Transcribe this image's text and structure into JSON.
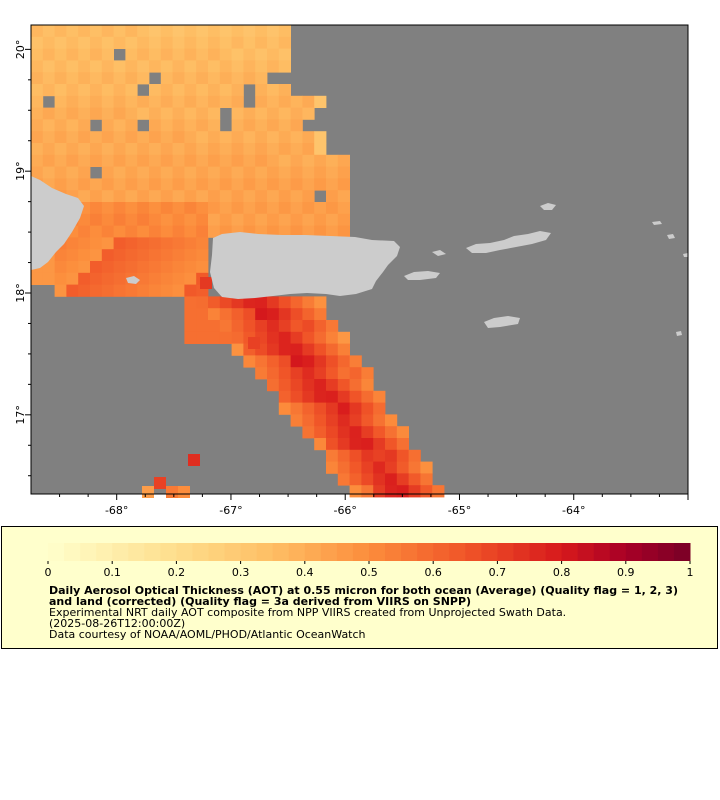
{
  "map": {
    "lon_range": [
      -68.75,
      -63.0
    ],
    "lat_range": [
      16.35,
      20.2
    ],
    "lon_ticks": [
      -68,
      -67,
      -66,
      -65,
      -64
    ],
    "lon_tick_labels": [
      "-68°",
      "-67°",
      "-66°",
      "-65°",
      "-64°"
    ],
    "lat_ticks": [
      17,
      18,
      19,
      20
    ],
    "lat_tick_labels": [
      "17°",
      "18°",
      "19°",
      "20°"
    ],
    "colors": {
      "no_data": "#808080",
      "land": "#cccccc",
      "frame": "#000000"
    }
  },
  "legend": {
    "ticks": [
      0,
      0.1,
      0.2,
      0.3,
      0.4,
      0.5,
      0.6,
      0.7,
      0.8,
      0.9,
      1
    ],
    "tick_labels": [
      "0",
      "0.1",
      "0.2",
      "0.3",
      "0.4",
      "0.5",
      "0.6",
      "0.7",
      "0.8",
      "0.9",
      "1"
    ],
    "title": "Daily Aerosol Optical Thickness (AOT) at 0.55 micron for both ocean (Average) (Quality flag = 1, 2, 3) and land (corrected) (Quality flag = 3a derived from VIIRS on SNPP)",
    "description": "Experimental NRT daily AOT composite from NPP VIIRS created from Unprojected Swath Data.",
    "date": "(2025-08-26T12:00:00Z)",
    "credit": "Data courtesy of NOAA/AOML/PHOD/Atlantic OceanWatch",
    "background": "#ffffcc"
  }
}
